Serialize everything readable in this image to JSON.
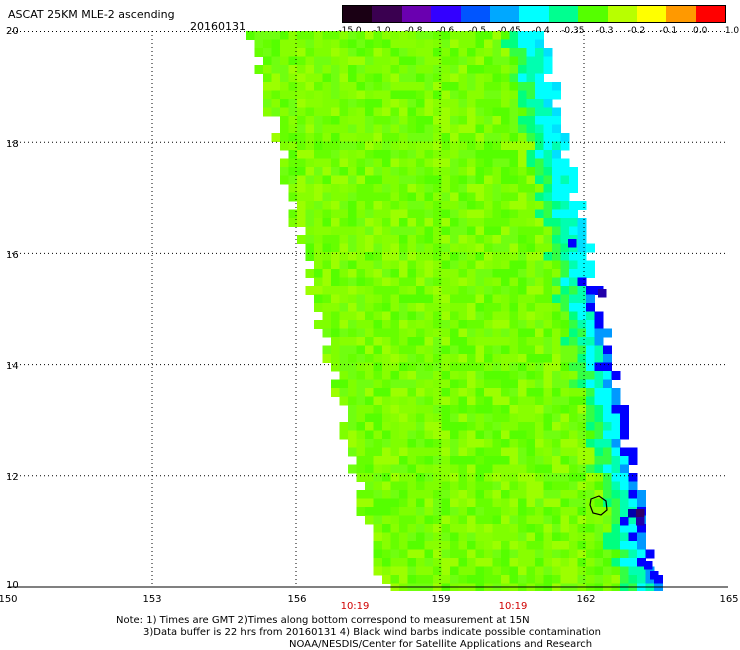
{
  "header": {
    "title": "ASCAT 25KM MLE-2 ascending",
    "date": "20160131"
  },
  "colorbar": {
    "labels": [
      "-15.0",
      "-1.0",
      "-0.8",
      "-0.6",
      "-0.5",
      "-0.45",
      "-0.4",
      "-0.35",
      "-0.3",
      "-0.2",
      "-0.1",
      "0.0",
      "1.0"
    ],
    "colors": [
      "#1a0014",
      "#3a0050",
      "#6a00b0",
      "#3300ff",
      "#0055ff",
      "#00a8ff",
      "#00ffff",
      "#00ff90",
      "#55ff00",
      "#b8ff00",
      "#ffff00",
      "#ff9900",
      "#ff0000"
    ]
  },
  "map": {
    "lon_range": [
      150,
      165
    ],
    "lat_range": [
      10,
      20
    ],
    "x_ticks": [
      "150",
      "153",
      "156",
      "159",
      "162",
      "165"
    ],
    "y_ticks": [
      "20",
      "18",
      "16",
      "14",
      "12",
      "10"
    ],
    "grid": "dotted",
    "time_labels": [
      "10:19",
      "10:19"
    ],
    "time_label_color": "#d00000"
  },
  "notes": [
    "Note: 1) Times are GMT 2)Times along bottom correspond to measurement at 15N",
    "3)Data buffer is 22 hrs from 20160131 4) Black wind barbs indicate possible contamination",
    "NOAA/NESDIS/Center for Satellite Applications and Research"
  ]
}
